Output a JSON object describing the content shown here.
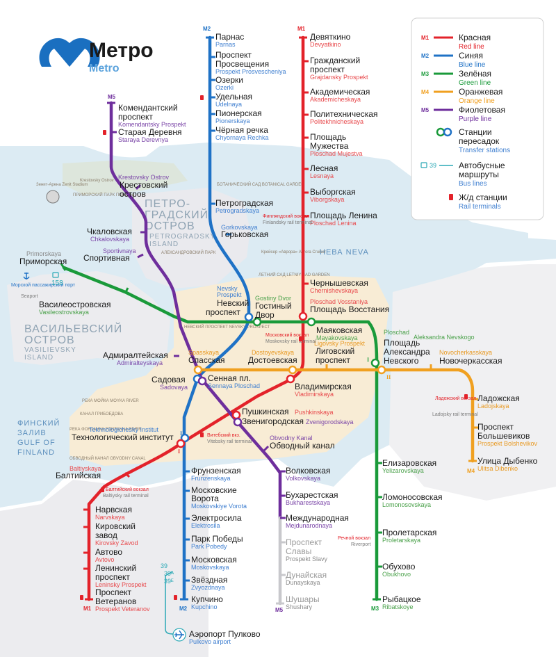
{
  "logo": {
    "title_ru": "Метро",
    "title_en": "Metro"
  },
  "lines": {
    "M1": {
      "code": "M1",
      "color": "#e3222a",
      "ru": "Красная",
      "en": "Red line"
    },
    "M2": {
      "code": "M2",
      "color": "#1f72c6",
      "ru": "Синяя",
      "en": "Blue line"
    },
    "M3": {
      "code": "M3",
      "color": "#1a9a3a",
      "ru": "Зелёная",
      "en": "Green line"
    },
    "M4": {
      "code": "M4",
      "color": "#f0a020",
      "ru": "Оранжевая",
      "en": "Orange line"
    },
    "M5": {
      "code": "M5",
      "color": "#6e2e9c",
      "ru": "Фиолетовая",
      "en": "Purple line"
    }
  },
  "legend": {
    "transfer_ru_1": "Станции",
    "transfer_ru_2": "пересадок",
    "transfer_en": "Transfer stations",
    "bus_code": "39",
    "bus_ru_1": "Автобусные",
    "bus_ru_2": "маршруты",
    "bus_en": "Bus lines",
    "rail_ru": "Ж/д станции",
    "rail_en": "Rail terminals"
  },
  "stations": {
    "parnas": {
      "ru": "Парнас",
      "en": "Parnas"
    },
    "prosveshcheniya": {
      "ru1": "Проспект",
      "ru2": "Просвещения",
      "en": "Prospekt Prosvescheniya"
    },
    "ozerki": {
      "ru": "Озерки",
      "en": "Ozerki"
    },
    "udelnaya": {
      "ru": "Удельная",
      "en": "Udelnaya"
    },
    "pionerskaya": {
      "ru": "Пионерская",
      "en": "Pionerskaya"
    },
    "chyornaya": {
      "ru": "Чёрная речка",
      "en": "Chyornaya Rechka"
    },
    "petrogradskaya": {
      "ru": "Петроградская",
      "en": "Petrogradskaya"
    },
    "gorkovskaya": {
      "ru": "Горьковская",
      "en": "Gorkovskaya"
    },
    "nevsky": {
      "ru1": "Невский",
      "ru2": "проспект",
      "en1": "Nevsky",
      "en2": "Prospekt"
    },
    "sennaya": {
      "ru": "Сенная пл.",
      "en": "Sennaya Ploschad"
    },
    "tekhnologichesky": {
      "ru": "Технологический институт",
      "en": "Tekhnologichesky Institut"
    },
    "frunzenskaya": {
      "ru": "Фрунзенская",
      "en": "Frunzenskaya"
    },
    "moskovskie": {
      "ru1": "Московские",
      "ru2": "Ворота",
      "en": "Moskovskiye Vorota"
    },
    "elektrosila": {
      "ru": "Электросила",
      "en": "Elektrosila"
    },
    "park_pobedy": {
      "ru": "Парк Победы",
      "en": "Park Pobedy"
    },
    "moskovskaya": {
      "ru": "Московская",
      "en": "Moskovskaya"
    },
    "zvyozdnaya": {
      "ru": "Звёздная",
      "en": "Zvyozdnaya"
    },
    "kupchino": {
      "ru": "Купчино",
      "en": "Kupchino"
    },
    "devyatkino": {
      "ru": "Девяткино",
      "en": "Devyatkino"
    },
    "grazhdansky": {
      "ru1": "Гражданский",
      "ru2": "проспект",
      "en": "Grajdansky Prospekt"
    },
    "akademicheskaya": {
      "ru": "Академическая",
      "en": "Akademicheskaya"
    },
    "politekhnicheskaya": {
      "ru": "Политехническая",
      "en": "Politekhnicheskaya"
    },
    "muzhestva": {
      "ru1": "Площадь",
      "ru2": "Мужества",
      "en": "Ploschad Mujestva"
    },
    "lesnaya": {
      "ru": "Лесная",
      "en": "Lesnaya"
    },
    "vyborgskaya": {
      "ru": "Выборгская",
      "en": "Viborgskaya"
    },
    "lenina": {
      "ru": "Площадь Ленина",
      "en": "Ploschad Lenina"
    },
    "chernyshevskaya": {
      "ru": "Чернышевская",
      "en": "Chernishevskaya"
    },
    "vosstaniya": {
      "ru": "Площадь Восстания",
      "en": "Ploschad Vosstaniya"
    },
    "vladimirskaya": {
      "ru": "Владимирская",
      "en": "Vladimirskaya"
    },
    "pushkinskaya": {
      "ru": "Пушкинская",
      "en": "Pushkinskaya"
    },
    "baltiyskaya": {
      "ru": "Балтийская",
      "en": "Baltiyskaya"
    },
    "narvskaya": {
      "ru": "Нарвская",
      "en": "Narvskaya"
    },
    "kirovsky": {
      "ru1": "Кировский",
      "ru2": "завод",
      "en": "Kirovsky Zavod"
    },
    "avtovo": {
      "ru": "Автово",
      "en": "Avtovo"
    },
    "leninsky": {
      "ru1": "Ленинский",
      "ru2": "проспект",
      "en": "Leninsky Prospekt"
    },
    "veteranov": {
      "ru1": "Проспект",
      "ru2": "Ветеранов",
      "en": "Prospekt Veteranov"
    },
    "primorskaya": {
      "ru": "Приморская",
      "en": "Primorskaya"
    },
    "vasileostrovskaya": {
      "ru": "Василеостровская",
      "en": "Vasileostrovskaya"
    },
    "gostiny": {
      "ru1": "Гостиный",
      "ru2": "Двор",
      "en": "Gostiny Dvor"
    },
    "mayakovskaya": {
      "ru": "Маяковская",
      "en": "Mayakovskaya"
    },
    "aleksandra": {
      "ru1": "Площадь",
      "ru2": "Александра",
      "ru3": "Невского",
      "en1": "Ploschad",
      "en2": "Aleksandra Nevskogo"
    },
    "elizarovskaya": {
      "ru": "Елизаровская",
      "en": "Yelizarovskaya"
    },
    "lomonosovskaya": {
      "ru": "Ломоносовская",
      "en": "Lomonosovskaya"
    },
    "proletarskaya": {
      "ru": "Пролетарская",
      "en": "Proletarskaya"
    },
    "obukhovo": {
      "ru": "Обухово",
      "en": "Obukhovo"
    },
    "rybatskoe": {
      "ru": "Рыбацкое",
      "en": "Ribatskoye"
    },
    "spasskaya": {
      "ru": "Спасская",
      "en": "Spasskaya"
    },
    "dostoevskaya": {
      "ru": "Достоевская",
      "en": "Dostoyevskaya"
    },
    "ligovsky": {
      "ru1": "Лиговский",
      "ru2": "проспект",
      "en": "Ligovsky Prospekt"
    },
    "novocherkasskaya": {
      "ru": "Новочеркасская",
      "en": "Novocherkasskaya"
    },
    "ladozhskaya": {
      "ru": "Ладожская",
      "en": "Ladojskaya"
    },
    "bolshevikov": {
      "ru1": "Проспект",
      "ru2": "Большевиков",
      "en": "Prospekt Bolshevikov"
    },
    "dybenko": {
      "ru": "Улица Дыбенко",
      "en": "Ulitsa Dibenko"
    },
    "komendantsky": {
      "ru1": "Комендантский",
      "ru2": "проспект",
      "en": "Komendantsky Prospekt"
    },
    "staraya": {
      "ru": "Старая Деревня",
      "en": "Staraya Derevnya"
    },
    "krestovsky": {
      "ru1": "Крестовский",
      "ru2": "остров",
      "en": "Krestovsky Ostrov"
    },
    "chkalovskaya": {
      "ru": "Чкаловская",
      "en": "Chkalovskaya"
    },
    "sportivnaya": {
      "ru": "Спортивная",
      "en": "Sportivnaya"
    },
    "admiralteyskaya": {
      "ru": "Адмиралтейская",
      "en": "Admiralteyskaya"
    },
    "sadovaya": {
      "ru": "Садовая",
      "en": "Sadovaya"
    },
    "zvenigorodskaya": {
      "ru": "Звенигородская",
      "en": "Zvenigorodskaya"
    },
    "obvodny": {
      "ru": "Обводный канал",
      "en": "Obvodny Kanal"
    },
    "volkovskaya": {
      "ru": "Волковская",
      "en": "Volkovskaya"
    },
    "bukharestskaya": {
      "ru": "Бухарестская",
      "en": "Bukharestskaya"
    },
    "mezhdunarodnaya": {
      "ru": "Международная",
      "en": "Mejdunarodnaya"
    },
    "slavy": {
      "ru1": "Проспект",
      "ru2": "Славы",
      "en": "Prospekt Slavy"
    },
    "dunayskaya": {
      "ru": "Дунайская",
      "en": "Dunayskaya"
    },
    "shushary": {
      "ru": "Шушары",
      "en": "Shushary"
    }
  },
  "airport": {
    "ru": "Аэропорт Пулково",
    "en": "Pulkovo airport",
    "bus1": "39",
    "bus2": "39ᴬ",
    "bus3": "39ᴱ"
  },
  "rail_terminals": {
    "finlyandsky": {
      "ru": "Финляндский вокзал",
      "en": "Finlandsky rail terminal"
    },
    "moskovsky": {
      "ru": "Московский вокзал",
      "en": "Moskovsky rail terminal"
    },
    "vitebsky": {
      "ru": "Витебский вкз.",
      "en": "Vitebsky rail terminal"
    },
    "baltiysky": {
      "ru": "Балтийский вокзал",
      "en": "Baltiysky rail terminal"
    },
    "ladozhsky": {
      "ru": "Ладожский вокзал",
      "en": "Ladojsky rail terminal"
    },
    "rechnoy": {
      "ru": "Речной вокзал",
      "en": "Riverport"
    },
    "seaport_ru": "Морской пассажирский порт",
    "seaport_en": "Seaport",
    "seaport_bus": "158"
  },
  "districts": {
    "petrogradsky_ru1": "ПЕТРО-",
    "petrogradsky_ru2": "ГРАДСКИЙ",
    "petrogradsky_ru3": "ОСТРОВ",
    "petrogradsky_en1": "PETROGRADSKY",
    "petrogradsky_en2": "ISLAND",
    "vasilievsky_ru1": "ВАСИЛЬЕВСКИЙ",
    "vasilievsky_ru2": "ОСТРОВ",
    "vasilievsky_en1": "VASILIEVSKY",
    "vasilievsky_en2": "ISLAND",
    "gulf_ru1": "ФИНСКИЙ",
    "gulf_ru2": "ЗАЛИВ",
    "gulf_en1": "GULF OF",
    "gulf_en2": "FINLAND",
    "neva": "НЕВА NEVA",
    "moyka": "РЕКА МОЙКА MOYKA RIVER",
    "griboedova": "КАНАЛ ГРИБОЕДОВА",
    "fontanka": "РЕКА ФОНТАНКА FONTANKA RIVER",
    "obvodny_canal": "ОБВОДНЫЙ КАНАЛ OBVODNY CANAL",
    "nevsky_prospekt_street": "НЕВСКИЙ ПРОСПЕКТ NEVSKY PROSPECT",
    "krestovsky_ostrov": "Krestovsky Ostrov",
    "primorsky_park": "ПРИМОРСКИЙ ПАРК ПОБЕДЫ",
    "botanical": "БОТАНИЧЕСКИЙ САД BOTANICAL GARDEN",
    "letny_sad": "ЛЕТНИЙ САД LETNIY SAD GARDEN",
    "alexandrovsky": "АЛЕКСАНДРОВСКИЙ ПАРК",
    "cruiser": "Крейсер «Аврора» Aurora Cruiser",
    "zenit": "Зенит-Арена Zenit Stadium"
  }
}
